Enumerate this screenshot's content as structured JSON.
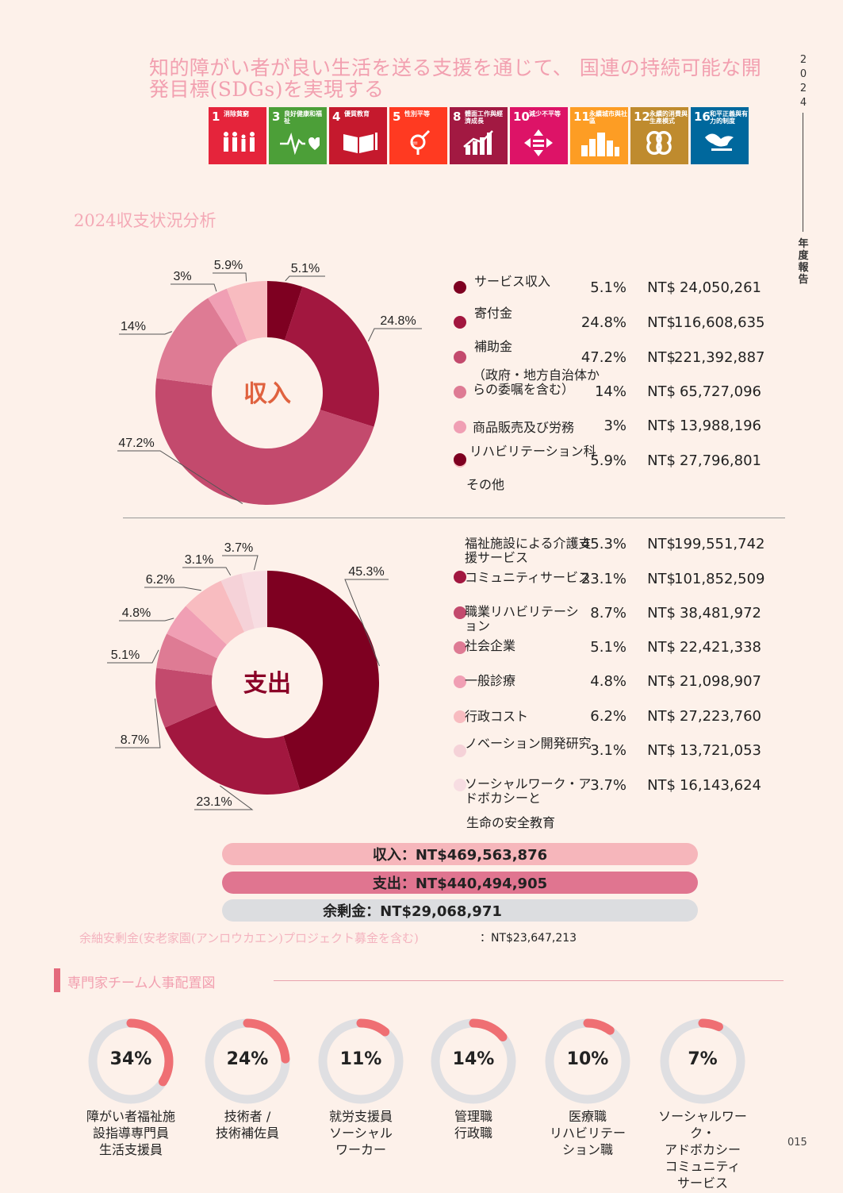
{
  "header": {
    "headline": "知的障がい者が良い生活を送る支援を通じて、 国連の持続可能な開発目標(SDGs)を実現する",
    "year_chars": [
      "2",
      "0",
      "2",
      "4"
    ],
    "report_chars": [
      "年",
      "度",
      "報",
      "告"
    ],
    "page_number": "015"
  },
  "sdgs": [
    {
      "num": "1",
      "label": "消除貧窮",
      "color": "#e5243b",
      "icon": "people-icon"
    },
    {
      "num": "3",
      "label": "良好健康和福祉",
      "color": "#4c9f38",
      "icon": "heartbeat-icon"
    },
    {
      "num": "4",
      "label": "優質教育",
      "color": "#c5192d",
      "icon": "book-icon"
    },
    {
      "num": "5",
      "label": "性別平等",
      "color": "#ff3a21",
      "icon": "gender-icon"
    },
    {
      "num": "8",
      "label": "體面工作與經濟成長",
      "color": "#a21942",
      "icon": "growth-chart-icon"
    },
    {
      "num": "10",
      "label": "減少不平等",
      "color": "#dd1367",
      "icon": "equality-icon"
    },
    {
      "num": "11",
      "label": "永續城市與社區",
      "color": "#fd9d24",
      "icon": "city-icon"
    },
    {
      "num": "12",
      "label": "永續的消費與生產模式",
      "color": "#bf8b2e",
      "icon": "infinity-icon"
    },
    {
      "num": "16",
      "label": "和平正義與有力的制度",
      "color": "#00689d",
      "icon": "dove-icon"
    }
  ],
  "section_title": "2024収支状況分析",
  "chart_data": [
    {
      "type": "pie",
      "center_label": "収入",
      "slices": [
        {
          "name": "サービス収入",
          "pct": "5.1%",
          "value": 5.1,
          "amount": "24,050,261",
          "color": "#7e0021"
        },
        {
          "name": "寄付金",
          "pct": "24.8%",
          "value": 24.8,
          "amount": "116,608,635",
          "color": "#a2173f"
        },
        {
          "name": "補助金",
          "pct": "47.2%",
          "value": 47.2,
          "amount": "221,392,887",
          "color": "#c34a6d"
        },
        {
          "name": "（政府・地方自治体からの委嘱を含む）",
          "pct": "14%",
          "value": 14,
          "amount": "65,727,096",
          "color": "#de7b94"
        },
        {
          "name": "商品販売及び労務",
          "pct": "3%",
          "value": 3,
          "amount": "13,988,196",
          "color": "#f09fb4"
        },
        {
          "name": "リハビリテーション科",
          "pct": "5.9%",
          "value": 5.9,
          "amount": "27,796,801",
          "color": "#f8bcc0"
        }
      ],
      "extra_label": "その他",
      "currency": "NT$"
    },
    {
      "type": "pie",
      "center_label": "支出",
      "slices": [
        {
          "name": "福祉施設による介護支援サービス",
          "pct": "45.3%",
          "value": 45.3,
          "amount": "199,551,742",
          "color": "#7e0021"
        },
        {
          "name": "コミュニティサービス",
          "pct": "23.1%",
          "value": 23.1,
          "amount": "101,852,509",
          "color": "#a2173f"
        },
        {
          "name": "職業リハビリテーション",
          "pct": "8.7%",
          "value": 8.7,
          "amount": "38,481,972",
          "color": "#c34a6d"
        },
        {
          "name": "社会企業",
          "pct": "5.1%",
          "value": 5.1,
          "amount": "22,421,338",
          "color": "#de7b94"
        },
        {
          "name": "一般診療",
          "pct": "4.8%",
          "value": 4.8,
          "amount": "21,098,907",
          "color": "#f09fb4"
        },
        {
          "name": "行政コスト",
          "pct": "6.2%",
          "value": 6.2,
          "amount": "27,223,760",
          "color": "#f8bcc0"
        },
        {
          "name": "ノベーション開発研究",
          "pct": "3.1%",
          "value": 3.1,
          "amount": "13,721,053",
          "color": "#f5d2d8"
        },
        {
          "name": "ソーシャルワーク・アドボカシーと",
          "pct": "3.7%",
          "value": 3.7,
          "amount": "16,143,624",
          "color": "#f7dde2"
        }
      ],
      "extra_label": "生命の安全教育",
      "currency": "NT$"
    }
  ],
  "totals": {
    "income": "収入：NT$469,563,876",
    "expense": "支出：NT$440,494,905",
    "surplus": "余剰金：NT$29,068,971",
    "note_label": "余紬安剰金(安老家園(アンロウカエン)プロジェクト募金を含む)",
    "note_value": "：NT$23,647,213"
  },
  "staff_title": "専門家チーム人事配置図",
  "staff": [
    {
      "pct": "34%",
      "value": 34,
      "label": [
        "障がい者福祉施",
        "設指導専門員",
        "生活支援員"
      ]
    },
    {
      "pct": "24%",
      "value": 24,
      "label": [
        "技術者 /",
        "技術補佐員"
      ]
    },
    {
      "pct": "11%",
      "value": 11,
      "label": [
        "就労支援員",
        "ソーシャル",
        "ワーカー"
      ]
    },
    {
      "pct": "14%",
      "value": 14,
      "label": [
        "管理職",
        "行政職"
      ]
    },
    {
      "pct": "10%",
      "value": 10,
      "label": [
        "医療職",
        "リハビリテー",
        "ション職"
      ]
    },
    {
      "pct": "7%",
      "value": 7,
      "label": [
        "ソーシャルワーク・",
        "アドボカシー",
        "コミュニティ",
        "サービス"
      ]
    }
  ]
}
